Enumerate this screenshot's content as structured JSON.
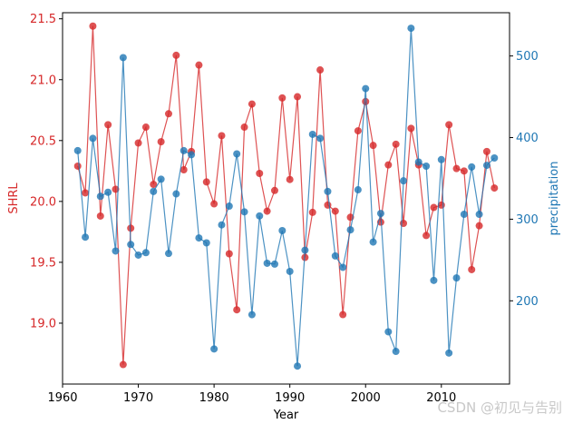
{
  "chart_data": {
    "type": "line",
    "x_label": "Year",
    "grid": false,
    "x_range": [
      1960,
      2019
    ],
    "x_ticks": [
      1960,
      1970,
      1980,
      1990,
      2000,
      2010
    ],
    "x": [
      1962,
      1963,
      1964,
      1965,
      1966,
      1967,
      1968,
      1969,
      1970,
      1971,
      1972,
      1973,
      1974,
      1975,
      1976,
      1977,
      1978,
      1979,
      1980,
      1981,
      1982,
      1983,
      1984,
      1985,
      1986,
      1987,
      1988,
      1989,
      1990,
      1991,
      1992,
      1993,
      1994,
      1995,
      1996,
      1997,
      1998,
      1999,
      2000,
      2001,
      2002,
      2003,
      2004,
      2005,
      2006,
      2007,
      2008,
      2009,
      2010,
      2011,
      2012,
      2013,
      2014,
      2015,
      2016,
      2017
    ],
    "left_axis": {
      "label": "SHRL",
      "color": "#d62728",
      "range": [
        18.5,
        21.55
      ],
      "ticks": [
        "19.0",
        "19.5",
        "20.0",
        "20.5",
        "21.0",
        "21.5"
      ]
    },
    "right_axis": {
      "label": "precipitation",
      "color": "#1f77b4",
      "range": [
        98,
        553
      ],
      "ticks": [
        "200",
        "300",
        "400",
        "500"
      ]
    },
    "series": [
      {
        "name": "SHRL",
        "axis": "left",
        "color": "#d62728",
        "values": [
          20.29,
          20.07,
          21.44,
          19.88,
          20.63,
          20.1,
          18.66,
          19.78,
          20.48,
          20.61,
          20.14,
          20.49,
          20.72,
          21.2,
          20.26,
          20.41,
          21.12,
          20.16,
          19.98,
          20.54,
          19.57,
          19.11,
          20.61,
          20.8,
          20.23,
          19.92,
          20.09,
          20.85,
          20.18,
          20.86,
          19.54,
          19.91,
          21.08,
          19.97,
          19.92,
          19.07,
          19.87,
          20.58,
          20.82,
          20.46,
          19.83,
          20.3,
          20.47,
          19.82,
          20.6,
          20.3,
          19.72,
          19.95,
          19.97,
          20.63,
          20.27,
          20.25,
          19.44,
          19.8,
          20.41,
          20.11
        ]
      },
      {
        "name": "precipitation",
        "axis": "right",
        "color": "#1f77b4",
        "values": [
          384,
          278,
          399,
          328,
          333,
          261,
          498,
          269,
          256,
          259,
          334,
          349,
          258,
          331,
          384,
          379,
          277,
          271,
          141,
          293,
          316,
          380,
          309,
          183,
          304,
          246,
          245,
          286,
          236,
          120,
          262,
          404,
          399,
          334,
          255,
          241,
          287,
          336,
          460,
          272,
          307,
          162,
          138,
          347,
          534,
          370,
          365,
          225,
          373,
          136,
          228,
          306,
          364,
          306,
          366,
          375
        ]
      }
    ]
  },
  "watermark": "CSDN @初见与告别"
}
